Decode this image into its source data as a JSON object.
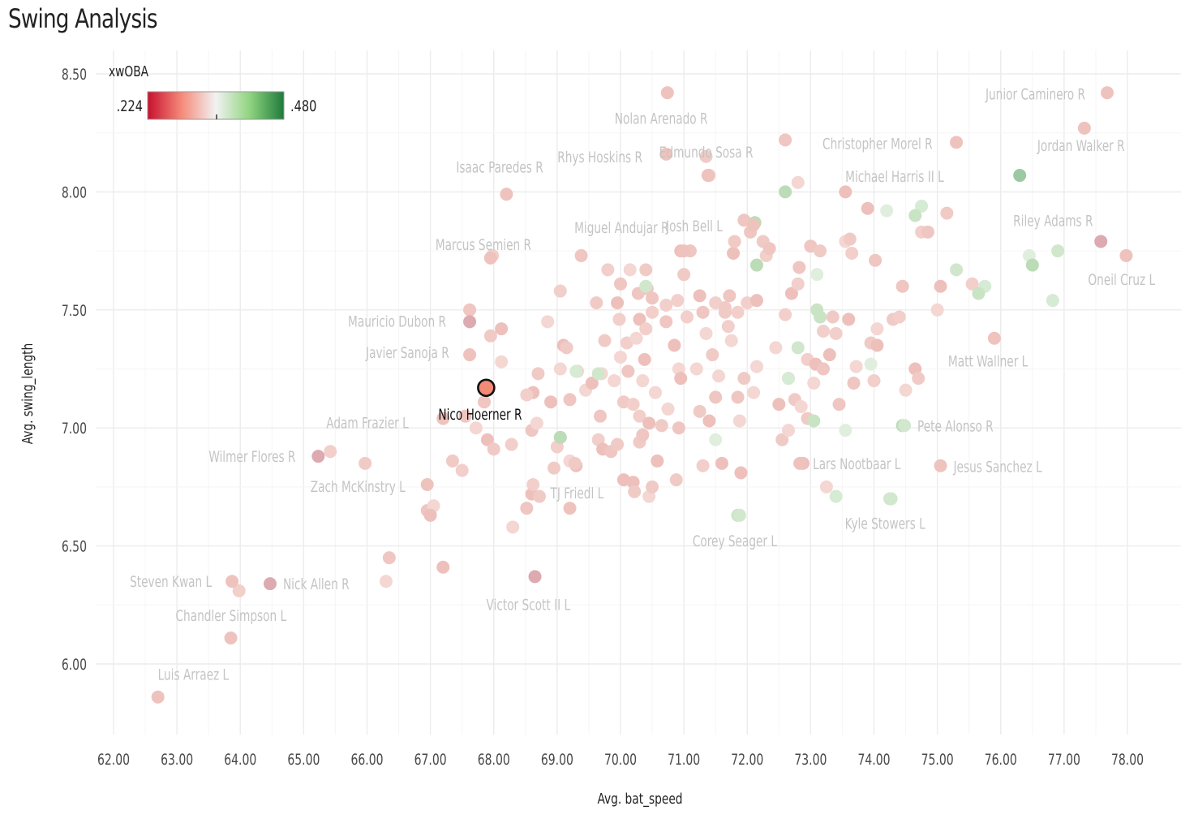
{
  "title": "Swing Analysis",
  "chart_data": {
    "type": "scatter",
    "title": "Swing Analysis",
    "xlabel": "Avg. bat_speed",
    "ylabel": "Avg. swing_length",
    "xlim": [
      61.8,
      79.1
    ],
    "ylim": [
      5.7,
      8.6
    ],
    "x_ticks": [
      "62.00",
      "63.00",
      "64.00",
      "65.00",
      "66.00",
      "67.00",
      "68.00",
      "69.00",
      "70.00",
      "71.00",
      "72.00",
      "73.00",
      "74.00",
      "75.00",
      "76.00",
      "77.00",
      "78.00"
    ],
    "y_ticks": [
      "6.00",
      "6.50",
      "7.00",
      "7.50",
      "8.00",
      "8.50"
    ],
    "grid": true,
    "legend": {
      "title": "xwOBA",
      "position": "top-left",
      "min_label": ".224",
      "max_label": ".480",
      "min_value": 0.224,
      "max_value": 0.48,
      "colors": [
        "#c8102e",
        "#f58a7a",
        "#f2f2f2",
        "#8fd47f",
        "#1e7a3c"
      ]
    },
    "highlight": {
      "name": "Nico Hoerner R",
      "x": 67.88,
      "y": 7.17,
      "color": "#f38a76"
    },
    "labeled_points": [
      {
        "name": "Junior Caminero R",
        "x": 77.68,
        "y": 8.42
      },
      {
        "name": "Nolan Arenado R",
        "x": 70.74,
        "y": 8.42
      },
      {
        "name": "Christopher Morel R",
        "x": 75.3,
        "y": 8.21
      },
      {
        "name": "Jordan Walker R",
        "x": 77.32,
        "y": 8.27
      },
      {
        "name": "Rhys Hoskins R",
        "x": 70.72,
        "y": 8.16
      },
      {
        "name": "Michael Harris II L",
        "x": 76.3,
        "y": 8.07
      },
      {
        "name": "Edmundo Sosa R",
        "x": 71.38,
        "y": 8.07
      },
      {
        "name": "Isaac Paredes R",
        "x": 68.2,
        "y": 7.99
      },
      {
        "name": "Josh Bell L",
        "x": 72.1,
        "y": 7.86
      },
      {
        "name": "Miguel Andujar R",
        "x": 71.0,
        "y": 7.75
      },
      {
        "name": "Riley Adams R",
        "x": 77.58,
        "y": 7.79
      },
      {
        "name": "Oneil Cruz L",
        "x": 77.98,
        "y": 7.73
      },
      {
        "name": "Marcus Semien R",
        "x": 67.95,
        "y": 7.72
      },
      {
        "name": "Mauricio Dubon R",
        "x": 67.62,
        "y": 7.45
      },
      {
        "name": "Javier Sanoja R",
        "x": 67.62,
        "y": 7.31
      },
      {
        "name": "Matt Wallner L",
        "x": 75.9,
        "y": 7.38
      },
      {
        "name": "Adam Frazier L",
        "x": 67.2,
        "y": 7.04
      },
      {
        "name": "Pete Alonso R",
        "x": 74.48,
        "y": 7.01
      },
      {
        "name": "Wilmer Flores R",
        "x": 65.23,
        "y": 6.88
      },
      {
        "name": "Zach McKinstry L",
        "x": 66.95,
        "y": 6.76
      },
      {
        "name": "Lars Nootbaar L",
        "x": 72.83,
        "y": 6.85
      },
      {
        "name": "Jesus Sanchez L",
        "x": 75.05,
        "y": 6.84
      },
      {
        "name": "Kyle Stowers L",
        "x": 74.27,
        "y": 6.7
      },
      {
        "name": "TJ Friedl L",
        "x": 69.2,
        "y": 6.66
      },
      {
        "name": "Corey Seager L",
        "x": 71.88,
        "y": 6.63
      },
      {
        "name": "Steven Kwan L",
        "x": 63.87,
        "y": 6.35
      },
      {
        "name": "Nick Allen R",
        "x": 64.47,
        "y": 6.34
      },
      {
        "name": "Victor Scott II L",
        "x": 68.65,
        "y": 6.37
      },
      {
        "name": "Chandler Simpson L",
        "x": 63.85,
        "y": 6.11
      },
      {
        "name": "Luis Arraez L",
        "x": 62.7,
        "y": 5.86
      }
    ],
    "other_points": [
      [
        63.98,
        6.31
      ],
      [
        66.35,
        6.45
      ],
      [
        66.3,
        6.35
      ],
      [
        67.2,
        6.41
      ],
      [
        65.97,
        6.85
      ],
      [
        65.42,
        6.9
      ],
      [
        66.95,
        6.65
      ],
      [
        67.05,
        6.67
      ],
      [
        67.0,
        6.63
      ],
      [
        67.35,
        6.86
      ],
      [
        67.5,
        6.82
      ],
      [
        67.55,
        7.05
      ],
      [
        67.72,
        7.0
      ],
      [
        67.9,
        6.95
      ],
      [
        68.0,
        6.91
      ],
      [
        68.28,
        6.93
      ],
      [
        68.52,
        6.66
      ],
      [
        68.3,
        6.58
      ],
      [
        68.6,
        6.72
      ],
      [
        68.72,
        6.71
      ],
      [
        68.62,
        6.76
      ],
      [
        68.6,
        6.99
      ],
      [
        68.68,
        7.02
      ],
      [
        68.62,
        7.15
      ],
      [
        68.7,
        7.23
      ],
      [
        68.52,
        7.14
      ],
      [
        67.85,
        7.11
      ],
      [
        68.12,
        7.28
      ],
      [
        68.12,
        7.42
      ],
      [
        67.95,
        7.39
      ],
      [
        67.98,
        7.73
      ],
      [
        67.62,
        7.5
      ],
      [
        68.85,
        7.45
      ],
      [
        68.9,
        7.11
      ],
      [
        68.95,
        6.83
      ],
      [
        69.0,
        6.92
      ],
      [
        69.05,
        6.96
      ],
      [
        69.05,
        7.25
      ],
      [
        69.1,
        7.35
      ],
      [
        69.15,
        7.34
      ],
      [
        69.05,
        7.58
      ],
      [
        69.2,
        7.12
      ],
      [
        69.2,
        6.86
      ],
      [
        69.3,
        6.84
      ],
      [
        69.28,
        6.85
      ],
      [
        69.32,
        7.24
      ],
      [
        69.38,
        7.73
      ],
      [
        69.45,
        7.16
      ],
      [
        69.55,
        7.19
      ],
      [
        69.62,
        7.53
      ],
      [
        69.65,
        6.95
      ],
      [
        69.68,
        7.05
      ],
      [
        69.7,
        7.23
      ],
      [
        69.72,
        6.91
      ],
      [
        69.75,
        7.37
      ],
      [
        69.8,
        7.67
      ],
      [
        69.85,
        6.9
      ],
      [
        69.9,
        7.2
      ],
      [
        69.95,
        7.53
      ],
      [
        69.95,
        6.93
      ],
      [
        69.98,
        7.46
      ],
      [
        70.0,
        7.61
      ],
      [
        70.0,
        7.3
      ],
      [
        70.05,
        6.78
      ],
      [
        70.05,
        7.11
      ],
      [
        70.1,
        7.36
      ],
      [
        70.12,
        7.24
      ],
      [
        70.15,
        7.67
      ],
      [
        70.2,
        6.77
      ],
      [
        70.22,
        6.73
      ],
      [
        70.2,
        7.1
      ],
      [
        70.28,
        7.57
      ],
      [
        70.25,
        7.38
      ],
      [
        70.3,
        7.46
      ],
      [
        70.3,
        6.94
      ],
      [
        70.3,
        7.05
      ],
      [
        70.35,
        6.97
      ],
      [
        70.35,
        7.2
      ],
      [
        70.38,
        7.29
      ],
      [
        70.4,
        7.67
      ],
      [
        70.4,
        7.42
      ],
      [
        70.42,
        7.59
      ],
      [
        70.45,
        6.71
      ],
      [
        70.45,
        7.02
      ],
      [
        70.5,
        6.75
      ],
      [
        70.5,
        7.49
      ],
      [
        70.5,
        7.55
      ],
      [
        70.55,
        7.15
      ],
      [
        70.58,
        6.86
      ],
      [
        70.65,
        7.01
      ],
      [
        70.72,
        7.52
      ],
      [
        70.72,
        7.45
      ],
      [
        70.75,
        7.08
      ],
      [
        70.85,
        7.35
      ],
      [
        70.88,
        6.78
      ],
      [
        70.9,
        7.54
      ],
      [
        70.92,
        7.0
      ],
      [
        70.92,
        7.25
      ],
      [
        70.95,
        7.21
      ],
      [
        71.0,
        7.65
      ],
      [
        71.05,
        7.47
      ],
      [
        71.1,
        7.75
      ],
      [
        71.2,
        7.25
      ],
      [
        71.25,
        7.56
      ],
      [
        71.25,
        7.07
      ],
      [
        71.3,
        6.84
      ],
      [
        71.3,
        7.49
      ],
      [
        71.35,
        7.4
      ],
      [
        71.4,
        7.03
      ],
      [
        71.45,
        7.31
      ],
      [
        71.5,
        7.53
      ],
      [
        71.5,
        7.13
      ],
      [
        71.55,
        7.22
      ],
      [
        71.6,
        6.85
      ],
      [
        71.65,
        7.49
      ],
      [
        71.7,
        7.43
      ],
      [
        71.72,
        7.56
      ],
      [
        71.75,
        7.37
      ],
      [
        71.78,
        7.74
      ],
      [
        71.8,
        7.79
      ],
      [
        71.85,
        7.49
      ],
      [
        71.85,
        7.13
      ],
      [
        71.88,
        7.03
      ],
      [
        71.9,
        6.81
      ],
      [
        71.95,
        7.21
      ],
      [
        72.0,
        7.53
      ],
      [
        72.05,
        7.83
      ],
      [
        72.1,
        7.15
      ],
      [
        72.15,
        7.54
      ],
      [
        72.25,
        7.79
      ],
      [
        72.3,
        7.73
      ],
      [
        72.35,
        7.76
      ],
      [
        72.45,
        7.34
      ],
      [
        72.5,
        7.1
      ],
      [
        72.55,
        6.95
      ],
      [
        72.6,
        7.48
      ],
      [
        72.65,
        7.21
      ],
      [
        72.65,
        6.99
      ],
      [
        72.7,
        7.57
      ],
      [
        72.75,
        7.12
      ],
      [
        72.8,
        7.61
      ],
      [
        72.82,
        7.68
      ],
      [
        72.85,
        7.09
      ],
      [
        72.88,
        6.85
      ],
      [
        72.95,
        7.04
      ],
      [
        72.95,
        7.29
      ],
      [
        73.0,
        7.77
      ],
      [
        73.05,
        7.19
      ],
      [
        73.08,
        7.27
      ],
      [
        73.15,
        7.75
      ],
      [
        73.2,
        7.41
      ],
      [
        73.2,
        7.25
      ],
      [
        73.25,
        6.75
      ],
      [
        73.3,
        7.31
      ],
      [
        73.35,
        7.47
      ],
      [
        73.4,
        7.4
      ],
      [
        73.45,
        7.1
      ],
      [
        73.55,
        7.79
      ],
      [
        73.6,
        7.46
      ],
      [
        73.62,
        7.8
      ],
      [
        73.65,
        7.74
      ],
      [
        73.68,
        7.19
      ],
      [
        73.72,
        7.26
      ],
      [
        73.9,
        7.93
      ],
      [
        73.95,
        7.36
      ],
      [
        74.0,
        7.2
      ],
      [
        74.02,
        7.71
      ],
      [
        74.05,
        7.42
      ],
      [
        74.05,
        7.35
      ],
      [
        74.3,
        7.46
      ],
      [
        74.4,
        7.47
      ],
      [
        74.45,
        7.6
      ],
      [
        74.5,
        7.16
      ],
      [
        74.65,
        7.25
      ],
      [
        74.7,
        7.21
      ],
      [
        74.75,
        7.83
      ],
      [
        74.85,
        7.83
      ],
      [
        75.0,
        7.5
      ],
      [
        75.05,
        7.6
      ],
      [
        75.15,
        7.91
      ],
      [
        75.55,
        7.61
      ],
      [
        72.6,
        8.22
      ],
      [
        72.8,
        8.04
      ],
      [
        73.55,
        8.0
      ],
      [
        71.35,
        8.15
      ],
      [
        71.4,
        8.07
      ],
      [
        71.95,
        7.88
      ],
      [
        72.15,
        7.26
      ],
      [
        70.95,
        7.75
      ],
      [
        71.65,
        7.51
      ]
    ],
    "green_points": [
      [
        74.75,
        7.94
      ],
      [
        74.65,
        7.9
      ],
      [
        74.2,
        7.92
      ],
      [
        72.6,
        8.0
      ],
      [
        75.3,
        7.67
      ],
      [
        75.75,
        7.6
      ],
      [
        75.65,
        7.57
      ],
      [
        76.45,
        7.73
      ],
      [
        76.5,
        7.69
      ],
      [
        76.9,
        7.75
      ],
      [
        76.82,
        7.54
      ],
      [
        73.1,
        7.5
      ],
      [
        73.1,
        7.65
      ],
      [
        72.15,
        7.69
      ],
      [
        72.8,
        7.34
      ],
      [
        72.65,
        7.21
      ],
      [
        73.05,
        7.03
      ],
      [
        73.55,
        6.99
      ],
      [
        74.45,
        7.01
      ],
      [
        74.25,
        6.7
      ],
      [
        73.4,
        6.71
      ],
      [
        71.85,
        6.63
      ],
      [
        71.5,
        6.95
      ],
      [
        69.05,
        6.96
      ],
      [
        69.65,
        7.23
      ],
      [
        69.3,
        7.24
      ],
      [
        73.15,
        7.47
      ],
      [
        73.95,
        7.27
      ],
      [
        72.12,
        7.87
      ],
      [
        70.4,
        7.6
      ]
    ]
  }
}
